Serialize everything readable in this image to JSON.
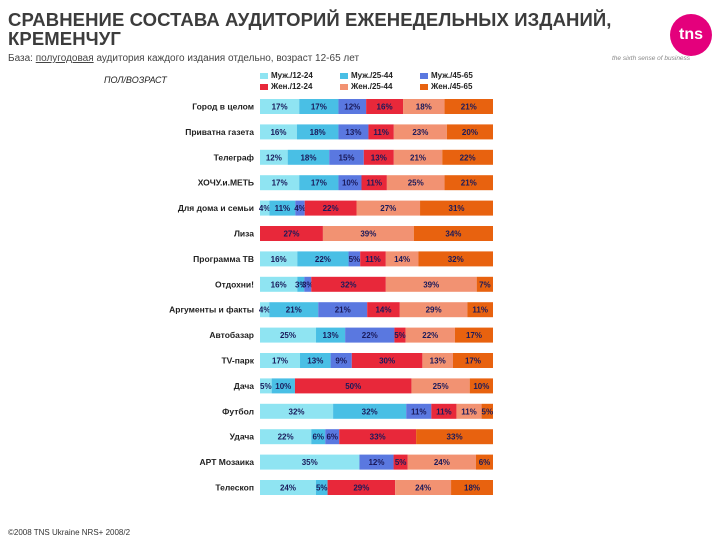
{
  "header": {
    "title": "СРАВНЕНИЕ СОСТАВА АУДИТОРИЙ ЕЖЕНЕДЕЛЬНЫХ ИЗДАНИЙ, КРЕМЕНЧУГ",
    "subtitle_prefix": "База:",
    "subtitle_underlined": "полугодовая",
    "subtitle_rest": "аудитория каждого издания отдельно, возраст 12-65 лет",
    "logo_text": "tns",
    "tagline": "the sixth sense of business"
  },
  "footer": {
    "copyright": "©2008 TNS Ukraine  NRS+ 2008/2"
  },
  "colors": {
    "male_12_24": "#8fe4f2",
    "male_25_44": "#49bfe5",
    "male_45_65": "#5a78e0",
    "female_12_24": "#e8283a",
    "female_25_44": "#f29272",
    "female_45_65": "#e8620f"
  },
  "chart_data": {
    "type": "bar",
    "orientation": "horizontal",
    "stacked": true,
    "percent": true,
    "axis_label": "ПОЛ/ВОЗРАСТ",
    "xlim": [
      0,
      100
    ],
    "categories": [
      "Город в целом",
      "Приватна газета",
      "Телеграф",
      "ХОЧУ.и.МЕТЬ",
      "Для дома и семьи",
      "Лиза",
      "Программа ТВ",
      "Отдохни!",
      "Аргументы и факты",
      "Автобазар",
      "TV-парк",
      "Дача",
      "Футбол",
      "Удача",
      "АРТ Мозаика",
      "Телескоп"
    ],
    "series": [
      {
        "name": "Муж./12-24",
        "color_key": "male_12_24",
        "values": [
          17,
          16,
          12,
          17,
          4,
          0,
          16,
          16,
          4,
          25,
          17,
          5,
          32,
          22,
          35,
          24
        ]
      },
      {
        "name": "Муж./25-44",
        "color_key": "male_25_44",
        "values": [
          17,
          18,
          18,
          17,
          11,
          0,
          22,
          3,
          21,
          13,
          13,
          10,
          32,
          6,
          0,
          5
        ]
      },
      {
        "name": "Муж./45-65",
        "color_key": "male_45_65",
        "values": [
          12,
          13,
          15,
          10,
          4,
          0,
          5,
          3,
          21,
          22,
          9,
          0,
          11,
          6,
          12,
          0
        ]
      },
      {
        "name": "Жен./12-24",
        "color_key": "female_12_24",
        "values": [
          16,
          11,
          13,
          11,
          22,
          27,
          11,
          32,
          14,
          5,
          30,
          50,
          11,
          33,
          5,
          29
        ]
      },
      {
        "name": "Жен./25-44",
        "color_key": "female_25_44",
        "values": [
          18,
          23,
          21,
          25,
          27,
          39,
          14,
          39,
          29,
          22,
          13,
          25,
          11,
          0,
          24,
          24
        ]
      },
      {
        "name": "Жен./45-65",
        "color_key": "female_45_65",
        "values": [
          21,
          20,
          22,
          21,
          31,
          34,
          32,
          7,
          11,
          17,
          17,
          10,
          5,
          33,
          6,
          18
        ]
      }
    ]
  }
}
